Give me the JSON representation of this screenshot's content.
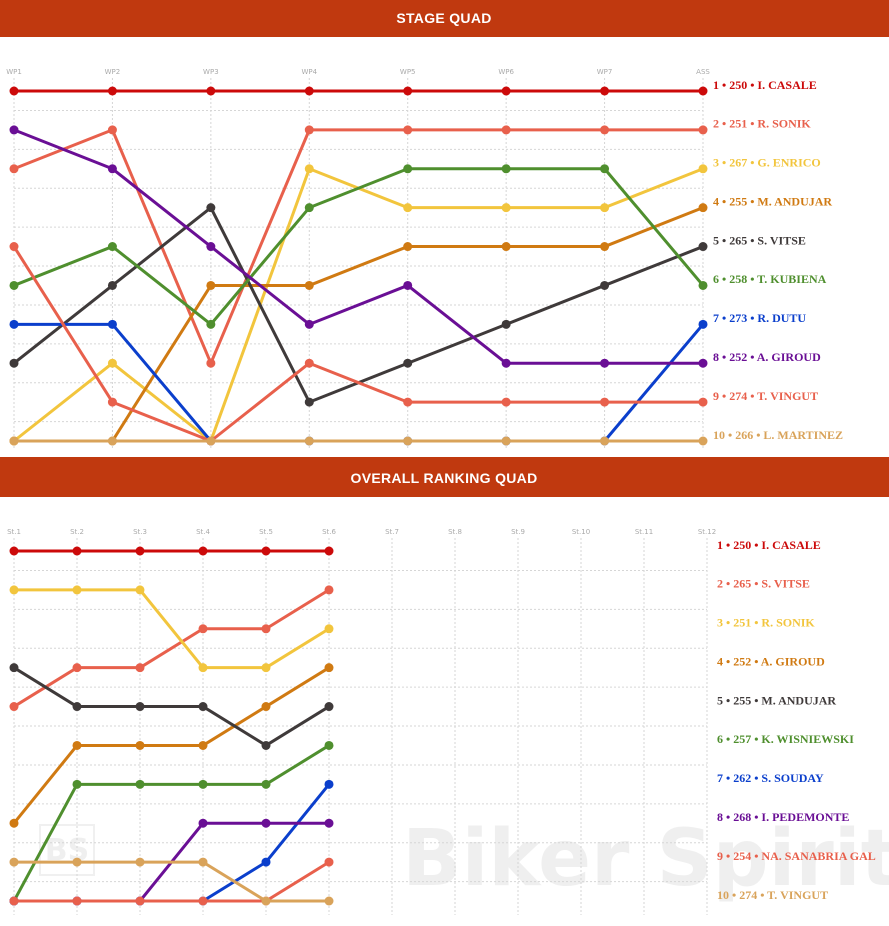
{
  "chart_data": [
    {
      "type": "line",
      "title": "STAGE QUAD",
      "categories": [
        "WP1",
        "WP2",
        "WP3",
        "WP4",
        "WP5",
        "WP6",
        "WP7",
        "ASS"
      ],
      "ylim": [
        10,
        1
      ],
      "yticks": [
        1,
        2,
        3,
        4,
        5,
        6,
        7,
        8,
        9,
        10
      ],
      "grid": true,
      "series": [
        {
          "name": "1 • 250 • I. CASALE",
          "color": "#cc0a0a",
          "values": [
            1,
            1,
            1,
            1,
            1,
            1,
            1,
            1
          ]
        },
        {
          "name": "2 • 251 • R. SONIK",
          "color": "#e8604c",
          "values": [
            3,
            2,
            8,
            2,
            2,
            2,
            2,
            2
          ]
        },
        {
          "name": "3 • 267 • G. ENRICO",
          "color": "#f2c53d",
          "values": [
            10,
            8,
            10,
            3,
            4,
            4,
            4,
            3
          ]
        },
        {
          "name": "4 • 255 • M. ANDUJAR",
          "color": "#d07a12",
          "values": [
            10,
            10,
            6,
            6,
            5,
            5,
            5,
            4
          ]
        },
        {
          "name": "5 • 265 • S. VITSE",
          "color": "#3f3a3a",
          "values": [
            8,
            6,
            4,
            9,
            8,
            7,
            6,
            5
          ]
        },
        {
          "name": "6 • 258 • T. KUBIENA",
          "color": "#4f8f2e",
          "values": [
            6,
            5,
            7,
            4,
            3,
            3,
            3,
            6
          ]
        },
        {
          "name": "7 • 273 • R. DUTU",
          "color": "#0b3fcc",
          "values": [
            7,
            7,
            10,
            10,
            10,
            10,
            10,
            7
          ]
        },
        {
          "name": "8 • 252 • A. GIROUD",
          "color": "#6a0f95",
          "values": [
            2,
            3,
            5,
            7,
            6,
            8,
            8,
            8
          ]
        },
        {
          "name": "9 • 274 • T. VINGUT",
          "color": "#e8604c",
          "values": [
            5,
            9,
            10,
            8,
            9,
            9,
            9,
            9
          ]
        },
        {
          "name": "10 • 266 • L. MARTINEZ",
          "color": "#d9a35a",
          "values": [
            10,
            10,
            10,
            10,
            10,
            10,
            10,
            10
          ]
        }
      ]
    },
    {
      "type": "line",
      "title": "OVERALL RANKING QUAD",
      "categories": [
        "St.1",
        "St.2",
        "St.3",
        "St.4",
        "St.5",
        "St.6",
        "St.7",
        "St.8",
        "St.9",
        "St.10",
        "St.11",
        "St.12"
      ],
      "ylim": [
        10,
        1
      ],
      "yticks": [
        1,
        2,
        3,
        4,
        5,
        6,
        7,
        8,
        9,
        10
      ],
      "grid": true,
      "watermark": [
        "BS",
        "Biker Spirit"
      ],
      "series": [
        {
          "name": "1 • 250 • I. CASALE",
          "color": "#cc0a0a",
          "values": [
            1,
            1,
            1,
            1,
            1,
            1,
            null,
            null,
            null,
            null,
            null,
            null
          ]
        },
        {
          "name": "2 • 265 • S. VITSE",
          "color": "#e8604c",
          "values": [
            5,
            4,
            4,
            3,
            3,
            2,
            null,
            null,
            null,
            null,
            null,
            null
          ]
        },
        {
          "name": "3 • 251 • R. SONIK",
          "color": "#f2c53d",
          "values": [
            2,
            2,
            2,
            4,
            4,
            3,
            null,
            null,
            null,
            null,
            null,
            null
          ]
        },
        {
          "name": "4 • 252 • A. GIROUD",
          "color": "#d07a12",
          "values": [
            8,
            6,
            6,
            6,
            5,
            4,
            null,
            null,
            null,
            null,
            null,
            null
          ]
        },
        {
          "name": "5 • 255 • M. ANDUJAR",
          "color": "#3f3a3a",
          "values": [
            4,
            5,
            5,
            5,
            6,
            5,
            null,
            null,
            null,
            null,
            null,
            null
          ]
        },
        {
          "name": "6 • 257 • K. WISNIEWSKI",
          "color": "#4f8f2e",
          "values": [
            10,
            7,
            7,
            7,
            7,
            6,
            null,
            null,
            null,
            null,
            null,
            null
          ]
        },
        {
          "name": "7 • 262 • S. SOUDAY",
          "color": "#0b3fcc",
          "values": [
            10,
            10,
            10,
            10,
            9,
            7,
            null,
            null,
            null,
            null,
            null,
            null
          ]
        },
        {
          "name": "8 • 268 • I. PEDEMONTE",
          "color": "#6a0f95",
          "values": [
            10,
            10,
            10,
            8,
            8,
            8,
            null,
            null,
            null,
            null,
            null,
            null
          ]
        },
        {
          "name": "9 • 254 • NA. SANABRIA GAL",
          "color": "#e8604c",
          "values": [
            10,
            10,
            10,
            10,
            10,
            9,
            null,
            null,
            null,
            null,
            null,
            null
          ]
        },
        {
          "name": "10 • 274 • T. VINGUT",
          "color": "#d9a35a",
          "values": [
            9,
            9,
            9,
            9,
            10,
            10,
            null,
            null,
            null,
            null,
            null,
            null
          ]
        }
      ]
    }
  ]
}
